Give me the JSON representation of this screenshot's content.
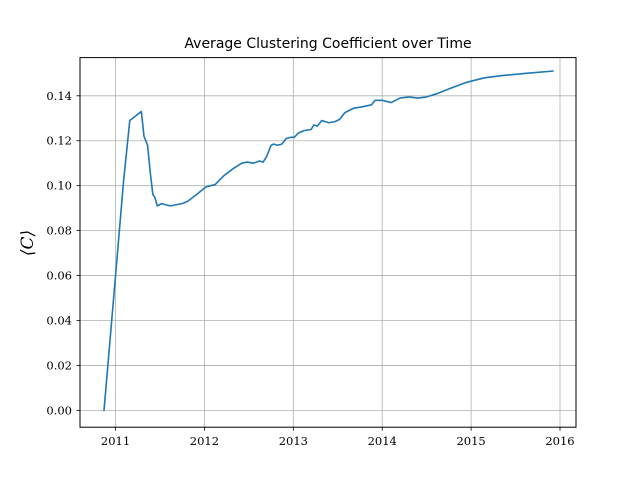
{
  "chart_data": {
    "type": "line",
    "title": "Average Clustering Coefficient over Time",
    "xlabel": "",
    "ylabel": "⟨C⟩",
    "xlim": [
      2010.6,
      2016.18
    ],
    "ylim": [
      -0.0075,
      0.157
    ],
    "xticks": [
      2011,
      2012,
      2013,
      2014,
      2015,
      2016
    ],
    "xtick_labels": [
      "2011",
      "2012",
      "2013",
      "2014",
      "2015",
      "2016"
    ],
    "yticks": [
      0.0,
      0.02,
      0.04,
      0.06,
      0.08,
      0.1,
      0.12,
      0.14
    ],
    "ytick_labels": [
      "0.00",
      "0.02",
      "0.04",
      "0.06",
      "0.08",
      "0.10",
      "0.12",
      "0.14"
    ],
    "grid": true,
    "line_color": "#1f77b4",
    "series": [
      {
        "x": [
          2010.87,
          2011.0,
          2011.09,
          2011.16,
          2011.29,
          2011.32,
          2011.36,
          2011.39,
          2011.42,
          2011.44,
          2011.47,
          2011.52,
          2011.56,
          2011.62,
          2011.68,
          2011.75,
          2011.81,
          2011.91,
          2012.02,
          2012.12,
          2012.22,
          2012.32,
          2012.42,
          2012.48,
          2012.55,
          2012.62,
          2012.66,
          2012.7,
          2012.75,
          2012.78,
          2012.82,
          2012.87,
          2012.92,
          2012.97,
          2013.01,
          2013.06,
          2013.12,
          2013.2,
          2013.23,
          2013.27,
          2013.32,
          2013.4,
          2013.47,
          2013.52,
          2013.58,
          2013.68,
          2013.76,
          2013.82,
          2013.88,
          2013.92,
          2014.0,
          2014.1,
          2014.2,
          2014.3,
          2014.4,
          2014.5,
          2014.62,
          2014.78,
          2014.95,
          2015.15,
          2015.35,
          2015.62,
          2015.92
        ],
        "y": [
          0.0,
          0.06,
          0.102,
          0.129,
          0.133,
          0.122,
          0.118,
          0.106,
          0.096,
          0.095,
          0.091,
          0.092,
          0.0915,
          0.091,
          0.0915,
          0.092,
          0.093,
          0.096,
          0.0995,
          0.1005,
          0.1045,
          0.1075,
          0.11,
          0.1105,
          0.11,
          0.111,
          0.1105,
          0.113,
          0.118,
          0.1185,
          0.118,
          0.1185,
          0.121,
          0.1215,
          0.1215,
          0.1235,
          0.1245,
          0.125,
          0.127,
          0.1265,
          0.129,
          0.128,
          0.1285,
          0.1295,
          0.1325,
          0.1345,
          0.135,
          0.1355,
          0.136,
          0.138,
          0.138,
          0.137,
          0.139,
          0.1395,
          0.139,
          0.1395,
          0.141,
          0.1435,
          0.146,
          0.148,
          0.149,
          0.15,
          0.151
        ]
      }
    ]
  }
}
